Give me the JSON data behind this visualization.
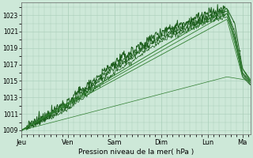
{
  "bg_color": "#cde8d8",
  "grid_color": "#a8cdb8",
  "line_color_dark": "#1a5c1a",
  "line_color_light": "#2e7d2e",
  "xlabel": "Pression niveau de la mer( hPa )",
  "ylim": [
    1008.5,
    1024.5
  ],
  "yticks": [
    1009,
    1011,
    1013,
    1015,
    1017,
    1019,
    1021,
    1023
  ],
  "day_labels": [
    "Jeu",
    "Ven",
    "Sam",
    "Dim",
    "Lun",
    "Ma"
  ],
  "day_positions": [
    0,
    48,
    96,
    144,
    192,
    228
  ],
  "total_points": 236,
  "lines": [
    {
      "x": [
        0,
        48,
        96,
        144,
        192,
        212,
        220,
        228,
        236
      ],
      "y": [
        1009.0,
        1012.5,
        1017.2,
        1021.0,
        1023.2,
        1023.8,
        1022.0,
        1016.5,
        1015.0
      ],
      "lw": 0.7,
      "noise": 0.3,
      "dark": true,
      "markers": true
    },
    {
      "x": [
        0,
        48,
        96,
        144,
        192,
        212,
        220,
        228,
        236
      ],
      "y": [
        1009.0,
        1012.2,
        1016.8,
        1020.5,
        1022.8,
        1023.5,
        1021.0,
        1016.0,
        1014.8
      ],
      "lw": 0.6,
      "noise": 0.25,
      "dark": true,
      "markers": true
    },
    {
      "x": [
        0,
        48,
        96,
        144,
        192,
        212,
        220,
        228,
        236
      ],
      "y": [
        1009.0,
        1011.8,
        1016.5,
        1020.2,
        1022.5,
        1023.2,
        1020.5,
        1015.8,
        1014.6
      ],
      "lw": 0.6,
      "noise": 0.2,
      "dark": true,
      "markers": false
    },
    {
      "x": [
        0,
        48,
        96,
        144,
        192,
        212,
        220,
        228,
        236
      ],
      "y": [
        1009.0,
        1011.5,
        1016.0,
        1019.8,
        1022.2,
        1022.8,
        1020.0,
        1015.5,
        1014.5
      ],
      "lw": 0.5,
      "noise": 0.15,
      "dark": true,
      "markers": false
    },
    {
      "x": [
        0,
        212,
        228,
        236
      ],
      "y": [
        1009.0,
        1023.8,
        1016.5,
        1015.2
      ],
      "lw": 0.7,
      "noise": 0.0,
      "dark": false,
      "markers": false
    },
    {
      "x": [
        0,
        212,
        228,
        236
      ],
      "y": [
        1009.0,
        1023.2,
        1016.0,
        1015.0
      ],
      "lw": 0.6,
      "noise": 0.0,
      "dark": false,
      "markers": false
    },
    {
      "x": [
        0,
        212,
        228,
        236
      ],
      "y": [
        1009.0,
        1022.5,
        1015.5,
        1014.8
      ],
      "lw": 0.6,
      "noise": 0.0,
      "dark": false,
      "markers": false
    },
    {
      "x": [
        0,
        212,
        228,
        236
      ],
      "y": [
        1009.0,
        1015.5,
        1015.2,
        1015.0
      ],
      "lw": 0.5,
      "noise": 0.0,
      "dark": false,
      "markers": false
    }
  ]
}
